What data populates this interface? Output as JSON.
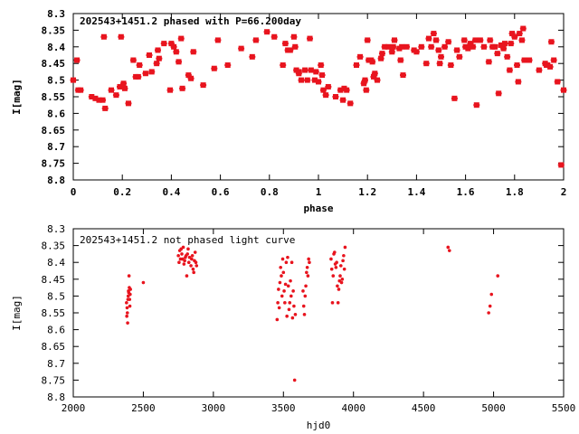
{
  "chart_data": [
    {
      "type": "scatter",
      "title": "202543+1451.2 phased with P=66.200day",
      "xlabel": "phase",
      "ylabel": "I[mag]",
      "xlim": [
        0,
        2
      ],
      "ylim": [
        8.3,
        8.8
      ],
      "y_inverted": true,
      "xticks": [
        "0",
        "0.2",
        "0.4",
        "0.6",
        "0.8",
        "1",
        "1.2",
        "1.4",
        "1.6",
        "1.8",
        "2"
      ],
      "yticks": [
        "8.3",
        "8.35",
        "8.4",
        "8.45",
        "8.5",
        "8.55",
        "8.6",
        "8.65",
        "8.7",
        "8.75",
        "8.8"
      ],
      "grid": false,
      "marker_color": "#e8141e",
      "points": [
        [
          0.0,
          8.5
        ],
        [
          0.015,
          8.44
        ],
        [
          0.02,
          8.53
        ],
        [
          0.03,
          8.53
        ],
        [
          0.075,
          8.55
        ],
        [
          0.09,
          8.555
        ],
        [
          0.105,
          8.56
        ],
        [
          0.12,
          8.56
        ],
        [
          0.125,
          8.37
        ],
        [
          0.13,
          8.585
        ],
        [
          0.155,
          8.53
        ],
        [
          0.175,
          8.545
        ],
        [
          0.19,
          8.52
        ],
        [
          0.195,
          8.37
        ],
        [
          0.205,
          8.51
        ],
        [
          0.21,
          8.525
        ],
        [
          0.225,
          8.57
        ],
        [
          0.245,
          8.44
        ],
        [
          0.255,
          8.49
        ],
        [
          0.265,
          8.49
        ],
        [
          0.27,
          8.455
        ],
        [
          0.295,
          8.48
        ],
        [
          0.31,
          8.425
        ],
        [
          0.32,
          8.475
        ],
        [
          0.34,
          8.45
        ],
        [
          0.345,
          8.41
        ],
        [
          0.35,
          8.435
        ],
        [
          0.37,
          8.39
        ],
        [
          0.395,
          8.53
        ],
        [
          0.4,
          8.39
        ],
        [
          0.41,
          8.4
        ],
        [
          0.42,
          8.415
        ],
        [
          0.43,
          8.445
        ],
        [
          0.44,
          8.375
        ],
        [
          0.445,
          8.525
        ],
        [
          0.47,
          8.485
        ],
        [
          0.48,
          8.495
        ],
        [
          0.49,
          8.415
        ],
        [
          0.53,
          8.515
        ],
        [
          0.575,
          8.465
        ],
        [
          0.59,
          8.38
        ],
        [
          0.63,
          8.455
        ],
        [
          0.685,
          8.405
        ],
        [
          0.73,
          8.43
        ],
        [
          0.745,
          8.38
        ],
        [
          0.79,
          8.355
        ],
        [
          0.82,
          8.37
        ],
        [
          0.855,
          8.455
        ],
        [
          0.865,
          8.39
        ],
        [
          0.875,
          8.41
        ],
        [
          0.885,
          8.41
        ],
        [
          0.9,
          8.37
        ],
        [
          0.905,
          8.4
        ],
        [
          0.91,
          8.47
        ],
        [
          0.92,
          8.475
        ],
        [
          0.92,
          8.48
        ],
        [
          0.93,
          8.5
        ],
        [
          0.945,
          8.47
        ],
        [
          0.955,
          8.5
        ],
        [
          0.965,
          8.375
        ],
        [
          0.97,
          8.47
        ],
        [
          0.985,
          8.5
        ],
        [
          0.99,
          8.475
        ],
        [
          1.0,
          8.505
        ],
        [
          1.01,
          8.455
        ],
        [
          1.015,
          8.485
        ],
        [
          1.02,
          8.53
        ],
        [
          1.03,
          8.545
        ],
        [
          1.04,
          8.52
        ],
        [
          1.07,
          8.55
        ],
        [
          1.09,
          8.53
        ],
        [
          1.1,
          8.56
        ],
        [
          1.105,
          8.525
        ],
        [
          1.115,
          8.53
        ],
        [
          1.13,
          8.57
        ],
        [
          1.155,
          8.455
        ],
        [
          1.17,
          8.43
        ],
        [
          1.185,
          8.51
        ],
        [
          1.19,
          8.5
        ],
        [
          1.195,
          8.53
        ],
        [
          1.2,
          8.38
        ],
        [
          1.205,
          8.44
        ],
        [
          1.215,
          8.44
        ],
        [
          1.22,
          8.445
        ],
        [
          1.225,
          8.49
        ],
        [
          1.23,
          8.48
        ],
        [
          1.24,
          8.5
        ],
        [
          1.255,
          8.435
        ],
        [
          1.26,
          8.42
        ],
        [
          1.27,
          8.4
        ],
        [
          1.285,
          8.4
        ],
        [
          1.3,
          8.415
        ],
        [
          1.305,
          8.4
        ],
        [
          1.31,
          8.38
        ],
        [
          1.33,
          8.405
        ],
        [
          1.335,
          8.44
        ],
        [
          1.34,
          8.4
        ],
        [
          1.345,
          8.485
        ],
        [
          1.36,
          8.4
        ],
        [
          1.39,
          8.41
        ],
        [
          1.4,
          8.415
        ],
        [
          1.42,
          8.4
        ],
        [
          1.44,
          8.45
        ],
        [
          1.45,
          8.375
        ],
        [
          1.46,
          8.4
        ],
        [
          1.47,
          8.36
        ],
        [
          1.48,
          8.38
        ],
        [
          1.49,
          8.41
        ],
        [
          1.495,
          8.45
        ],
        [
          1.5,
          8.43
        ],
        [
          1.515,
          8.4
        ],
        [
          1.53,
          8.385
        ],
        [
          1.54,
          8.455
        ],
        [
          1.555,
          8.555
        ],
        [
          1.565,
          8.41
        ],
        [
          1.575,
          8.43
        ],
        [
          1.595,
          8.38
        ],
        [
          1.6,
          8.4
        ],
        [
          1.61,
          8.405
        ],
        [
          1.62,
          8.39
        ],
        [
          1.63,
          8.4
        ],
        [
          1.64,
          8.38
        ],
        [
          1.645,
          8.575
        ],
        [
          1.66,
          8.38
        ],
        [
          1.675,
          8.4
        ],
        [
          1.695,
          8.445
        ],
        [
          1.7,
          8.38
        ],
        [
          1.71,
          8.4
        ],
        [
          1.72,
          8.4
        ],
        [
          1.73,
          8.42
        ],
        [
          1.735,
          8.54
        ],
        [
          1.745,
          8.395
        ],
        [
          1.755,
          8.405
        ],
        [
          1.76,
          8.39
        ],
        [
          1.77,
          8.43
        ],
        [
          1.78,
          8.47
        ],
        [
          1.785,
          8.39
        ],
        [
          1.79,
          8.36
        ],
        [
          1.8,
          8.37
        ],
        [
          1.81,
          8.455
        ],
        [
          1.815,
          8.505
        ],
        [
          1.82,
          8.36
        ],
        [
          1.83,
          8.38
        ],
        [
          1.835,
          8.345
        ],
        [
          1.84,
          8.44
        ],
        [
          1.86,
          8.44
        ],
        [
          1.9,
          8.47
        ],
        [
          1.925,
          8.45
        ],
        [
          1.93,
          8.455
        ],
        [
          1.935,
          8.455
        ],
        [
          1.945,
          8.46
        ],
        [
          1.95,
          8.385
        ],
        [
          1.96,
          8.44
        ],
        [
          1.975,
          8.505
        ],
        [
          1.99,
          8.755
        ],
        [
          2.0,
          8.53
        ]
      ]
    },
    {
      "type": "scatter",
      "title": "202543+1451.2 not phased light curve",
      "xlabel": "hjd0",
      "ylabel": "I[mag]",
      "xlim": [
        2000,
        5500
      ],
      "ylim": [
        8.3,
        8.8
      ],
      "y_inverted": true,
      "xticks": [
        "2000",
        "2500",
        "3000",
        "3500",
        "4000",
        "4500",
        "5000",
        "5500"
      ],
      "yticks": [
        "8.3",
        "8.35",
        "8.4",
        "8.45",
        "8.5",
        "8.55",
        "8.6",
        "8.65",
        "8.7",
        "8.75",
        "8.8"
      ],
      "grid": false,
      "marker_color": "#e8141e",
      "points": [
        [
          2380,
          8.52
        ],
        [
          2382,
          8.56
        ],
        [
          2384,
          8.535
        ],
        [
          2386,
          8.55
        ],
        [
          2388,
          8.58
        ],
        [
          2390,
          8.51
        ],
        [
          2392,
          8.5
        ],
        [
          2394,
          8.485
        ],
        [
          2396,
          8.49
        ],
        [
          2398,
          8.44
        ],
        [
          2400,
          8.475
        ],
        [
          2402,
          8.51
        ],
        [
          2404,
          8.53
        ],
        [
          2406,
          8.495
        ],
        [
          2408,
          8.48
        ],
        [
          2500,
          8.46
        ],
        [
          2750,
          8.38
        ],
        [
          2755,
          8.4
        ],
        [
          2760,
          8.365
        ],
        [
          2765,
          8.39
        ],
        [
          2770,
          8.36
        ],
        [
          2775,
          8.375
        ],
        [
          2780,
          8.39
        ],
        [
          2785,
          8.355
        ],
        [
          2790,
          8.405
        ],
        [
          2795,
          8.395
        ],
        [
          2800,
          8.385
        ],
        [
          2805,
          8.38
        ],
        [
          2810,
          8.44
        ],
        [
          2815,
          8.375
        ],
        [
          2820,
          8.36
        ],
        [
          2825,
          8.4
        ],
        [
          2830,
          8.385
        ],
        [
          2840,
          8.41
        ],
        [
          2845,
          8.39
        ],
        [
          2850,
          8.38
        ],
        [
          2855,
          8.42
        ],
        [
          2860,
          8.43
        ],
        [
          2865,
          8.395
        ],
        [
          2870,
          8.37
        ],
        [
          2875,
          8.4
        ],
        [
          2880,
          8.41
        ],
        [
          3455,
          8.57
        ],
        [
          3460,
          8.52
        ],
        [
          3465,
          8.48
        ],
        [
          3470,
          8.535
        ],
        [
          3475,
          8.46
        ],
        [
          3480,
          8.415
        ],
        [
          3485,
          8.44
        ],
        [
          3490,
          8.5
        ],
        [
          3495,
          8.39
        ],
        [
          3500,
          8.43
        ],
        [
          3505,
          8.485
        ],
        [
          3510,
          8.52
        ],
        [
          3515,
          8.465
        ],
        [
          3520,
          8.4
        ],
        [
          3525,
          8.56
        ],
        [
          3530,
          8.385
        ],
        [
          3535,
          8.47
        ],
        [
          3540,
          8.54
        ],
        [
          3545,
          8.52
        ],
        [
          3550,
          8.455
        ],
        [
          3555,
          8.5
        ],
        [
          3560,
          8.4
        ],
        [
          3565,
          8.565
        ],
        [
          3570,
          8.485
        ],
        [
          3575,
          8.53
        ],
        [
          3580,
          8.75
        ],
        [
          3585,
          8.555
        ],
        [
          3640,
          8.485
        ],
        [
          3645,
          8.53
        ],
        [
          3650,
          8.555
        ],
        [
          3655,
          8.5
        ],
        [
          3660,
          8.47
        ],
        [
          3665,
          8.43
        ],
        [
          3670,
          8.415
        ],
        [
          3675,
          8.44
        ],
        [
          3680,
          8.39
        ],
        [
          3685,
          8.4
        ],
        [
          3840,
          8.39
        ],
        [
          3845,
          8.42
        ],
        [
          3850,
          8.52
        ],
        [
          3855,
          8.44
        ],
        [
          3860,
          8.375
        ],
        [
          3865,
          8.37
        ],
        [
          3870,
          8.405
        ],
        [
          3875,
          8.415
        ],
        [
          3880,
          8.4
        ],
        [
          3885,
          8.47
        ],
        [
          3890,
          8.52
        ],
        [
          3895,
          8.48
        ],
        [
          3900,
          8.455
        ],
        [
          3905,
          8.44
        ],
        [
          3910,
          8.41
        ],
        [
          3915,
          8.46
        ],
        [
          3920,
          8.45
        ],
        [
          3925,
          8.395
        ],
        [
          3930,
          8.38
        ],
        [
          3935,
          8.42
        ],
        [
          3940,
          8.355
        ],
        [
          4675,
          8.355
        ],
        [
          4685,
          8.365
        ],
        [
          4965,
          8.55
        ],
        [
          4975,
          8.53
        ],
        [
          4985,
          8.495
        ],
        [
          5030,
          8.44
        ]
      ]
    }
  ]
}
